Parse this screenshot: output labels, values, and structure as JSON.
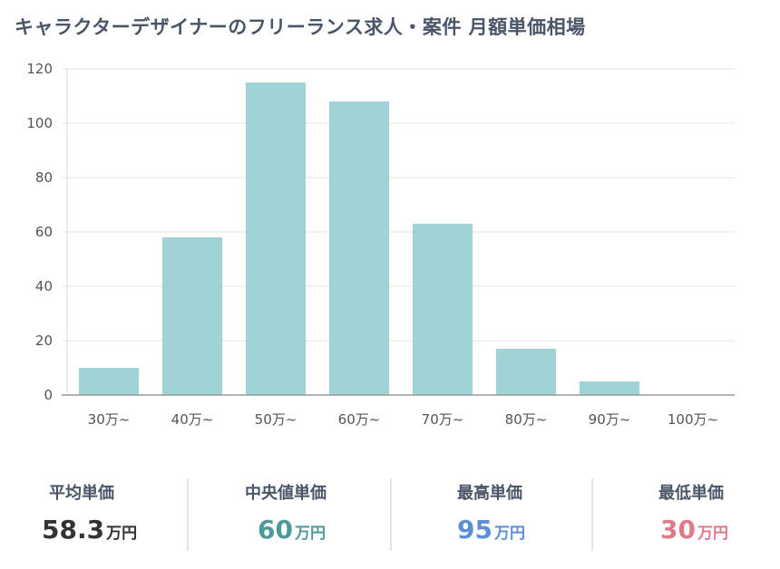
{
  "title": "キャラクターデザイナーのフリーランス求人・案件 月額単価相場",
  "chart_data": {
    "type": "bar",
    "categories": [
      "30万~",
      "40万~",
      "50万~",
      "60万~",
      "70万~",
      "80万~",
      "90万~",
      "100万~"
    ],
    "values": [
      10,
      58,
      115,
      108,
      63,
      17,
      5,
      0
    ],
    "ylim": [
      0,
      120
    ],
    "yticks": [
      0,
      20,
      40,
      60,
      80,
      100,
      120
    ],
    "grid": true,
    "bar_color": "#9fd3d6",
    "xlabel": "",
    "ylabel": ""
  },
  "stats": [
    {
      "label": "平均単価",
      "value": "58.3",
      "unit": "万円",
      "color": "#333333"
    },
    {
      "label": "中央値単価",
      "value": "60",
      "unit": "万円",
      "color": "#4f9a98"
    },
    {
      "label": "最高単価",
      "value": "95",
      "unit": "万円",
      "color": "#5b8fd6"
    },
    {
      "label": "最低単価",
      "value": "30",
      "unit": "万円",
      "color": "#e07a8a"
    }
  ]
}
